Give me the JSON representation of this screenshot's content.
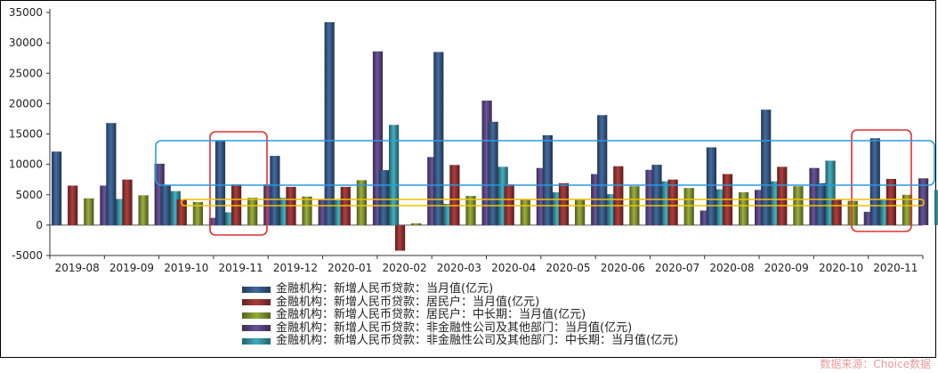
{
  "chart_data": {
    "type": "bar",
    "categories": [
      "2019-08",
      "2019-09",
      "2019-10",
      "2019-11",
      "2019-12",
      "2020-01",
      "2020-02",
      "2020-03",
      "2020-04",
      "2020-05",
      "2020-06",
      "2020-07",
      "2020-08",
      "2020-09",
      "2020-10",
      "2020-11"
    ],
    "series": [
      {
        "name": "金融机构：新增人民币贷款：当月值(亿元)",
        "color": "#2e4a70",
        "values": [
          12100,
          16800,
          6613,
          13900,
          11400,
          33400,
          9057,
          28500,
          17000,
          14800,
          18100,
          9927,
          12800,
          19000,
          6898,
          14300
        ]
      },
      {
        "name": "金融机构：新增人民币贷款：居民户：当月值(亿元)",
        "color": "#7a2a2a",
        "values": [
          6500,
          7500,
          4200,
          6700,
          6300,
          6300,
          -4200,
          9900,
          6700,
          6900,
          9700,
          7500,
          8400,
          9600,
          4300,
          7600
        ]
      },
      {
        "name": "金融机构：新增人民币贷款：居民户：中长期：当月值(亿元)",
        "color": "#6b7a2a",
        "values": [
          4400,
          4900,
          3800,
          4500,
          4700,
          7400,
          300,
          4800,
          4300,
          4300,
          6400,
          6100,
          5400,
          6400,
          4000,
          5000
        ]
      },
      {
        "name": "金融机构：新增人民币贷款：非金融性公司及其他部门：当月值(亿元)",
        "color": "#4a3a6a",
        "values": [
          6500,
          10100,
          1200,
          6700,
          4200,
          28600,
          11200,
          20500,
          9400,
          8400,
          9100,
          2400,
          5800,
          9400,
          2200,
          7700
        ]
      },
      {
        "name": "金融机构：新增人民币贷款：非金融性公司及其他部门：中长期：当月值(亿元)",
        "color": "#2e7a85",
        "values": [
          4300,
          5600,
          2100,
          4500,
          4100,
          16500,
          3500,
          9600,
          5400,
          5100,
          7200,
          5900,
          7200,
          10600,
          4200,
          5800
        ]
      }
    ],
    "yticks": [
      -5000,
      0,
      5000,
      10000,
      15000,
      20000,
      25000,
      30000,
      35000
    ],
    "ylim": [
      -5000,
      35000
    ],
    "grid": false,
    "legend_position": "bottom"
  },
  "source_note": "数据来源：Choice数据"
}
